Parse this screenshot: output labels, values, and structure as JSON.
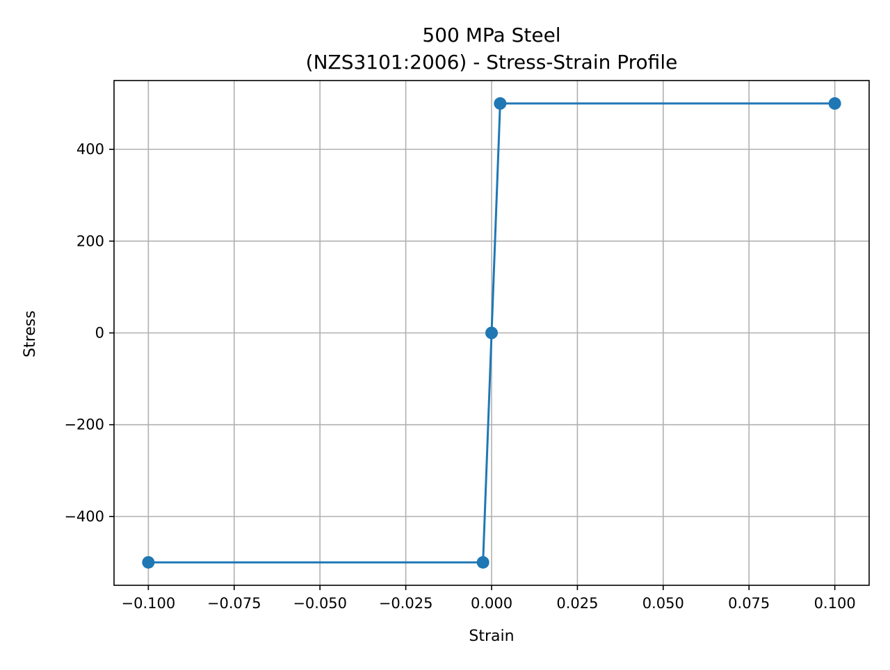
{
  "chart_data": {
    "type": "line",
    "title": [
      "500 MPa Steel",
      "(NZS3101:2006) - Stress-Strain Profile"
    ],
    "xlabel": "Strain",
    "ylabel": "Stress",
    "xlim": [
      -0.11,
      0.11
    ],
    "ylim": [
      -550,
      550
    ],
    "xticks": [
      -0.1,
      -0.075,
      -0.05,
      -0.025,
      0.0,
      0.025,
      0.05,
      0.075,
      0.1
    ],
    "xtick_labels": [
      "−0.100",
      "−0.075",
      "−0.050",
      "−0.025",
      "0.000",
      "0.025",
      "0.050",
      "0.075",
      "0.100"
    ],
    "yticks": [
      -400,
      -200,
      0,
      200,
      400
    ],
    "ytick_labels": [
      "−400",
      "−200",
      "0",
      "200",
      "400"
    ],
    "grid": true,
    "series": [
      {
        "color": "#1f77b4",
        "marker": "circle",
        "x": [
          -0.1,
          -0.0025,
          0.0,
          0.0025,
          0.1
        ],
        "y": [
          -500,
          -500,
          0,
          500,
          500
        ]
      }
    ]
  }
}
